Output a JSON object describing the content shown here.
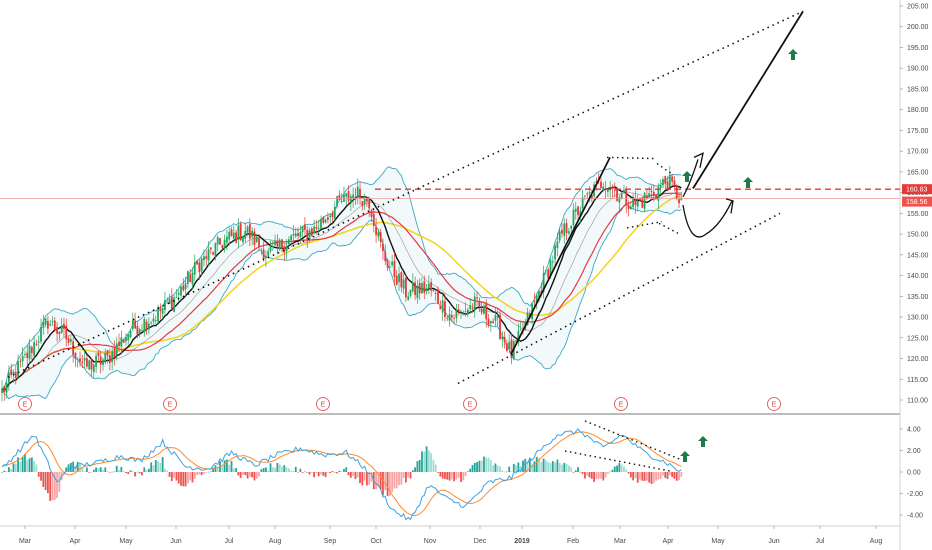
{
  "chart_data": [
    {
      "type": "candlestick",
      "title": "",
      "y_axis": {
        "ticks": [
          "205.00",
          "200.00",
          "195.00",
          "190.00",
          "185.00",
          "180.00",
          "175.00",
          "170.00",
          "165.00",
          "160.00",
          "155.00",
          "150.00",
          "145.00",
          "140.00",
          "135.00",
          "130.00",
          "125.00",
          "120.00",
          "115.00",
          "110.00"
        ],
        "ylim": [
          107,
          206
        ]
      },
      "x_axis": {
        "ticks": [
          "Mar",
          "Apr",
          "May",
          "Jun",
          "Jul",
          "Aug",
          "Sep",
          "Oct",
          "Nov",
          "Dec",
          "2019",
          "Feb",
          "Mar",
          "Apr",
          "May",
          "Jun",
          "Jul",
          "Aug"
        ]
      },
      "price_tags": [
        {
          "value": "160.83",
          "color": "#e53935"
        },
        {
          "value": "158.56",
          "color": "#ef5350"
        }
      ],
      "earnings_markers": [
        "E",
        "E",
        "E",
        "E",
        "E",
        "E"
      ],
      "close_anchors": [
        [
          0,
          112
        ],
        [
          10,
          120
        ],
        [
          20,
          129
        ],
        [
          28,
          125
        ],
        [
          36,
          118
        ],
        [
          46,
          120
        ],
        [
          56,
          127
        ],
        [
          66,
          130
        ],
        [
          76,
          135
        ],
        [
          86,
          143
        ],
        [
          96,
          148
        ],
        [
          106,
          151
        ],
        [
          116,
          145
        ],
        [
          126,
          149
        ],
        [
          136,
          151
        ],
        [
          146,
          157
        ],
        [
          154,
          160
        ],
        [
          160,
          158
        ],
        [
          166,
          145
        ],
        [
          176,
          136
        ],
        [
          186,
          137
        ],
        [
          196,
          130
        ],
        [
          206,
          133
        ],
        [
          216,
          128
        ],
        [
          222,
          121
        ],
        [
          228,
          128
        ],
        [
          234,
          136
        ],
        [
          244,
          150
        ],
        [
          254,
          158
        ],
        [
          262,
          163
        ],
        [
          268,
          160
        ],
        [
          276,
          157
        ],
        [
          284,
          160
        ],
        [
          290,
          163
        ],
        [
          296,
          158
        ]
      ],
      "arrows_up": 4,
      "indicators": [
        "Bollinger Bands",
        "MA",
        "MA",
        "MA"
      ]
    },
    {
      "type": "macd",
      "y_axis": {
        "ticks": [
          "4.00",
          "2.00",
          "0.00",
          "-2.00",
          "-4.00"
        ],
        "ylim": [
          -5.2,
          4.6
        ]
      },
      "macd_anchors": [
        [
          0,
          0.3
        ],
        [
          14,
          3.5
        ],
        [
          24,
          -1.0
        ],
        [
          30,
          0.5
        ],
        [
          40,
          0.8
        ],
        [
          52,
          1.5
        ],
        [
          60,
          1.0
        ],
        [
          70,
          2.8
        ],
        [
          80,
          0.5
        ],
        [
          90,
          0.3
        ],
        [
          100,
          1.8
        ],
        [
          110,
          0.6
        ],
        [
          120,
          1.6
        ],
        [
          130,
          2.2
        ],
        [
          140,
          1.6
        ],
        [
          150,
          1.8
        ],
        [
          160,
          0.0
        ],
        [
          170,
          -3.5
        ],
        [
          178,
          -4.5
        ],
        [
          186,
          -1.2
        ],
        [
          194,
          -2.5
        ],
        [
          202,
          -3.2
        ],
        [
          212,
          -1.0
        ],
        [
          222,
          -0.5
        ],
        [
          232,
          1.5
        ],
        [
          242,
          3.5
        ],
        [
          252,
          3.8
        ],
        [
          262,
          2.2
        ],
        [
          270,
          3.5
        ],
        [
          280,
          1.8
        ],
        [
          290,
          0.8
        ],
        [
          296,
          0.0
        ]
      ]
    }
  ]
}
